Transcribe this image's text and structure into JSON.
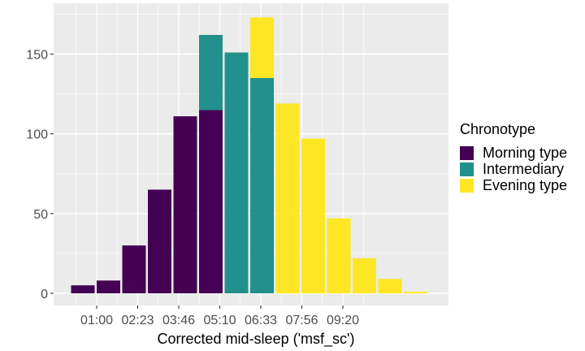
{
  "chart_data": {
    "type": "bar",
    "stacked": true,
    "xlabel": "Corrected mid-sleep ('msf_sc')",
    "ylabel": "",
    "ylim": [
      0,
      180
    ],
    "yticks": [
      0,
      50,
      100,
      150
    ],
    "xticks": [
      "01:00",
      "02:23",
      "03:46",
      "05:10",
      "06:33",
      "07:56",
      "09:20"
    ],
    "bins": [
      "bin1",
      "bin2",
      "bin3",
      "bin4",
      "bin5",
      "bin6",
      "bin7",
      "bin8",
      "bin9",
      "bin10",
      "bin11",
      "bin12",
      "bin13",
      "bin14"
    ],
    "legend_title": "Chronotype",
    "legend_position": "right",
    "grid": true,
    "panel_background": "#ebebeb",
    "series": [
      {
        "name": "Morning type",
        "color": "#440154",
        "values": [
          5,
          8,
          30,
          65,
          111,
          115,
          0,
          0,
          0,
          0,
          0,
          0,
          0,
          0
        ]
      },
      {
        "name": "Intermediary",
        "color": "#21908C",
        "values": [
          0,
          0,
          0,
          0,
          0,
          47,
          151,
          135,
          0,
          0,
          0,
          0,
          0,
          0
        ]
      },
      {
        "name": "Evening type",
        "color": "#FDE725",
        "values": [
          0,
          0,
          0,
          0,
          0,
          0,
          0,
          38,
          119,
          97,
          47,
          22,
          9,
          1
        ]
      }
    ]
  }
}
